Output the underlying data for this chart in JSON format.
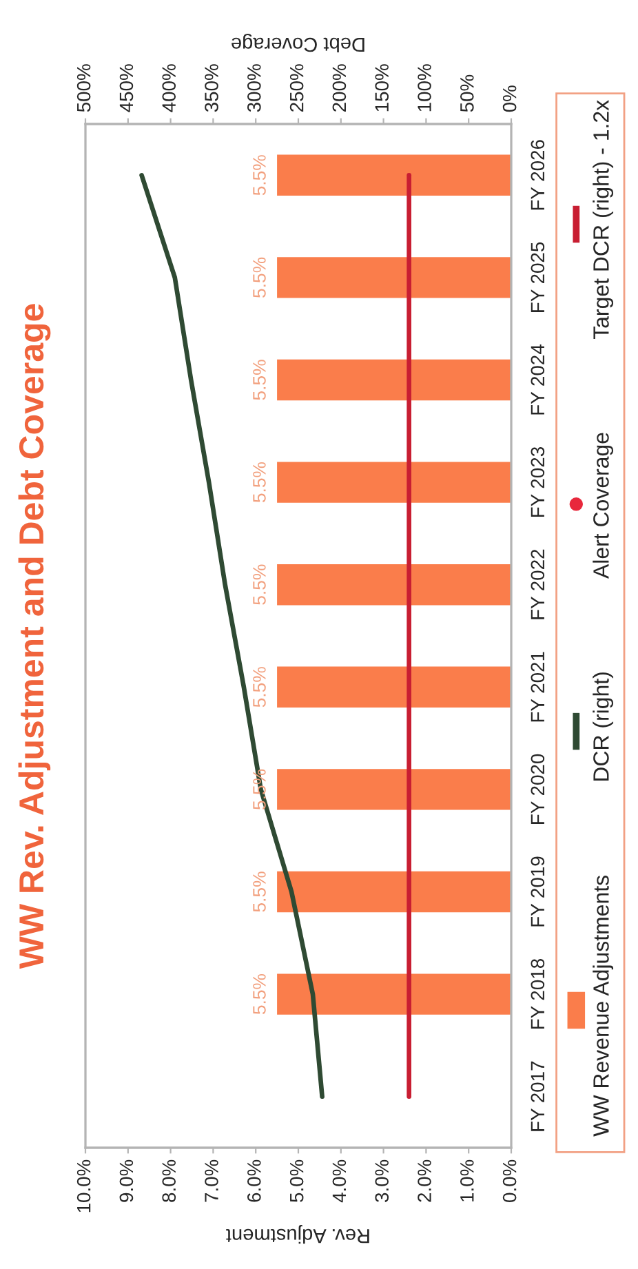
{
  "chart_data": {
    "type": "bar",
    "title": "WW Rev. Adjustment and Debt Coverage",
    "xlabel": "Rev. Adjustment",
    "x2label": "Debt Coverage",
    "orientation": "horizontal",
    "categories": [
      "FY 2026",
      "FY 2025",
      "FY 2024",
      "FY 2023",
      "FY 2022",
      "FY 2021",
      "FY 2020",
      "FY 2019",
      "FY 2018",
      "FY 2017"
    ],
    "series": [
      {
        "name": "WW Revenue Adjustments",
        "color": "#fa7d4b",
        "values": [
          5.5,
          5.5,
          5.5,
          5.5,
          5.5,
          5.5,
          5.5,
          5.5,
          5.5,
          null
        ],
        "value_labels": [
          "5.5%",
          "5.5%",
          "5.5%",
          "5.5%",
          "5.5%",
          "5.5%",
          "5.5%",
          "5.5%",
          "5.5%",
          null
        ]
      },
      {
        "name": "DCR (right)",
        "type": "line",
        "axis": "x2",
        "color": "#2f4a33",
        "line_style": "solid",
        "values": [
          434,
          395,
          376,
          355,
          336,
          314,
          294,
          258,
          233,
          222
        ]
      },
      {
        "name": "Alert Coverage",
        "type": "scatter",
        "axis": "x2",
        "color": "#e8283c",
        "marker": "circle",
        "values": [
          null,
          null,
          null,
          null,
          null,
          null,
          null,
          null,
          null,
          null
        ]
      },
      {
        "name": "Target DCR (right) - 1.2x",
        "type": "line",
        "axis": "x2",
        "color": "#c81e32",
        "line_style": "solid",
        "values": [
          120,
          120,
          120,
          120,
          120,
          120,
          120,
          120,
          120,
          120
        ]
      }
    ],
    "xlim": [
      10,
      0
    ],
    "xticks": [
      {
        "value": 10,
        "label": "10.0%"
      },
      {
        "value": 9,
        "label": "9.0%"
      },
      {
        "value": 8,
        "label": "8.0%"
      },
      {
        "value": 7,
        "label": "7.0%"
      },
      {
        "value": 6,
        "label": "6.0%"
      },
      {
        "value": 5,
        "label": "5.0%"
      },
      {
        "value": 4,
        "label": "4.0%"
      },
      {
        "value": 3,
        "label": "3.0%"
      },
      {
        "value": 2,
        "label": "2.0%"
      },
      {
        "value": 1,
        "label": "1.0%"
      },
      {
        "value": 0,
        "label": "0.0%"
      }
    ],
    "x2lim": [
      500,
      0
    ],
    "x2ticks": [
      {
        "value": 500,
        "label": "500%"
      },
      {
        "value": 450,
        "label": "450%"
      },
      {
        "value": 400,
        "label": "400%"
      },
      {
        "value": 350,
        "label": "350%"
      },
      {
        "value": 300,
        "label": "300%"
      },
      {
        "value": 250,
        "label": "250%"
      },
      {
        "value": 200,
        "label": "200%"
      },
      {
        "value": 150,
        "label": "150%"
      },
      {
        "value": 100,
        "label": "100%"
      },
      {
        "value": 50,
        "label": "50%"
      },
      {
        "value": 0,
        "label": "0%"
      }
    ],
    "legend": "right"
  }
}
